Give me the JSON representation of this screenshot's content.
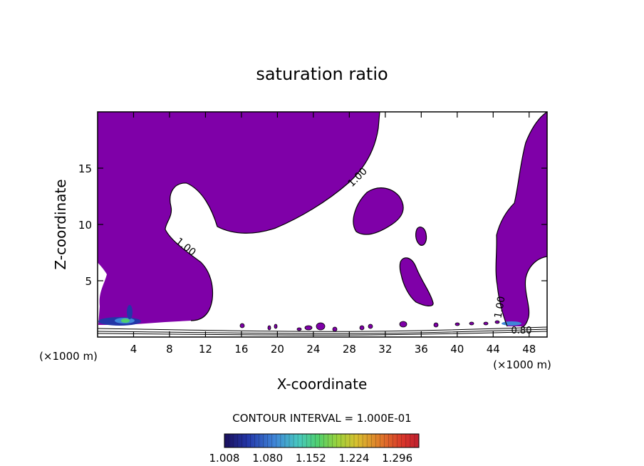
{
  "chart_data": {
    "type": "contour",
    "title": "saturation ratio",
    "xlabel": "X-coordinate",
    "ylabel": "Z-coordinate",
    "x_unit": "(×1000 m)",
    "xlim": [
      0,
      50
    ],
    "ylim": [
      0,
      20
    ],
    "x_ticks": [
      4,
      8,
      12,
      16,
      20,
      24,
      28,
      32,
      36,
      40,
      44,
      48
    ],
    "y_ticks": [
      5,
      10,
      15
    ],
    "contour_labels": [
      {
        "text": "1.00",
        "x": 28.4,
        "z": 14.2
      },
      {
        "text": "1.00",
        "x": 9.5,
        "z": 7.9
      },
      {
        "text": "1.00",
        "x": 44.7,
        "z": 2.5
      },
      {
        "text": "0.80",
        "x": 47.0,
        "z": 0.5
      }
    ],
    "contour_interval": "CONTOUR INTERVAL = 1.000E-01",
    "colorbar": {
      "labels": [
        "1.008",
        "1.080",
        "1.152",
        "1.224",
        "1.296"
      ],
      "min": 1.008,
      "max": 1.332,
      "colors": [
        "#1a0f5c",
        "#2336a8",
        "#3f86d8",
        "#48c8c0",
        "#4fcf6e",
        "#9ad23c",
        "#d8c030",
        "#e07a2a",
        "#d8342a",
        "#c02030"
      ]
    },
    "fill_color": "#7f00a8"
  }
}
